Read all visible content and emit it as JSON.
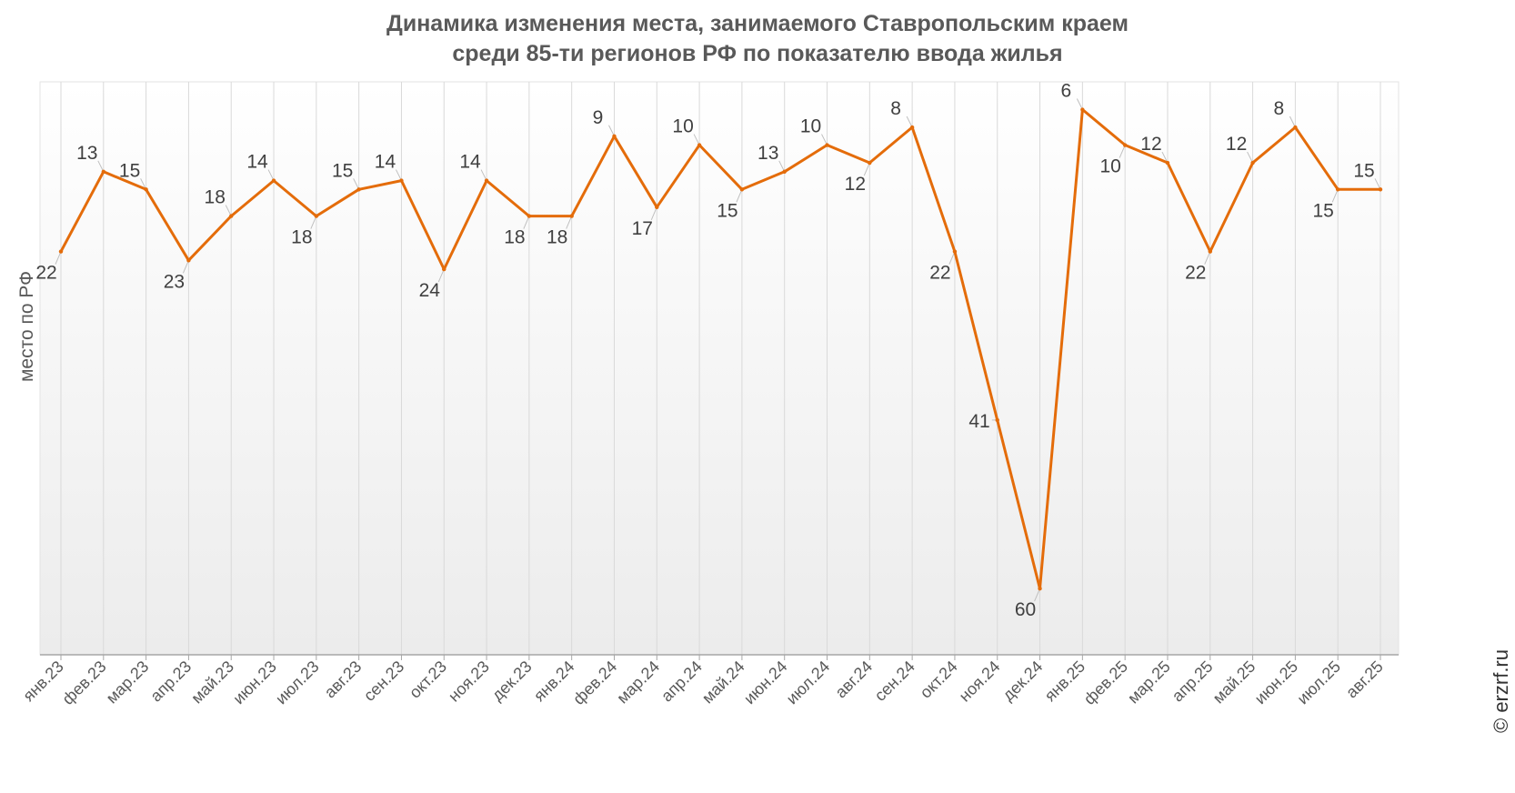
{
  "chart_data": {
    "type": "line",
    "title_line1": "Динамика изменения места, занимаемого Ставропольским краем",
    "title_line2": "среди 85-ти регионов РФ по показателю ввода жилья",
    "ylabel": "место по РФ",
    "xlabel": "",
    "y_inverted": true,
    "ylim": [
      0,
      65
    ],
    "grid": "vertical",
    "categories": [
      "янв.23",
      "фев.23",
      "мар.23",
      "апр.23",
      "май.23",
      "июн.23",
      "июл.23",
      "авг.23",
      "сен.23",
      "окт.23",
      "ноя.23",
      "дек.23",
      "янв.24",
      "фев.24",
      "мар.24",
      "апр.24",
      "май.24",
      "июн.24",
      "июл.24",
      "авг.24",
      "сен.24",
      "окт.24",
      "ноя.24",
      "дек.24",
      "янв.25",
      "фев.25",
      "мар.25",
      "апр.25",
      "май.25",
      "июн.25",
      "июл.25",
      "авг.25"
    ],
    "series": [
      {
        "name": "место по РФ",
        "color": "#E46C0A",
        "values": [
          22,
          13,
          15,
          23,
          18,
          14,
          18,
          15,
          14,
          24,
          14,
          18,
          18,
          9,
          17,
          10,
          15,
          13,
          10,
          12,
          8,
          22,
          41,
          60,
          6,
          10,
          12,
          22,
          12,
          8,
          15,
          15
        ]
      }
    ],
    "label_positions": [
      "below",
      "above",
      "above",
      "below",
      "above",
      "above",
      "below",
      "above",
      "above",
      "below",
      "above",
      "below",
      "below",
      "above",
      "below",
      "above",
      "below",
      "above",
      "above",
      "below",
      "above",
      "below",
      "left",
      "below",
      "above",
      "below",
      "above",
      "below",
      "above",
      "above",
      "below",
      "above"
    ]
  },
  "watermark": "© erzrf.ru",
  "colors": {
    "line": "#E46C0A",
    "grid": "#d9d9d9",
    "text": "#595959"
  }
}
